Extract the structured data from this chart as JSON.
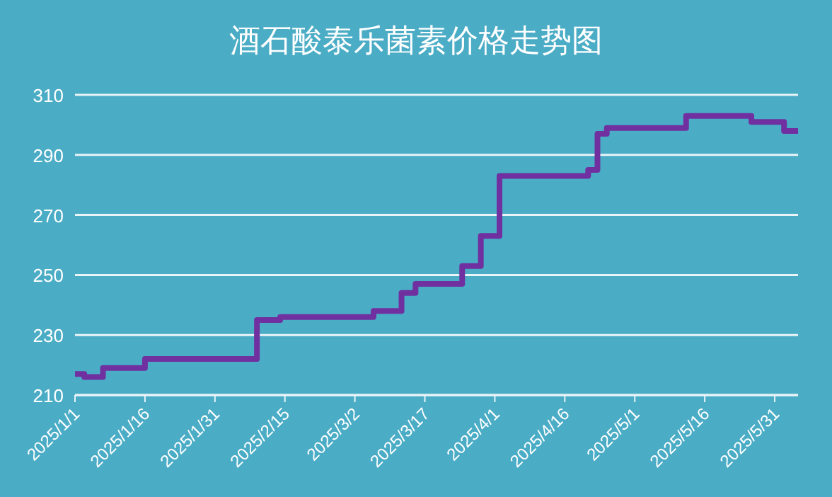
{
  "chart_data": {
    "type": "step",
    "title": "酒石酸泰乐菌素价格走势图",
    "x": [
      "2025-01-01",
      "2025-01-03",
      "2025-01-07",
      "2025-01-16",
      "2025-02-09",
      "2025-02-14",
      "2025-03-06",
      "2025-03-12",
      "2025-03-15",
      "2025-03-25",
      "2025-03-29",
      "2025-04-02",
      "2025-04-21",
      "2025-04-23",
      "2025-04-25",
      "2025-05-12",
      "2025-05-26",
      "2025-06-02",
      "2025-06-05"
    ],
    "series": [
      {
        "color": "#7030a0",
        "values": [
          217,
          216,
          219,
          222,
          235,
          236,
          238,
          244,
          247,
          253,
          263,
          283,
          285,
          297,
          299,
          303,
          301,
          298,
          298
        ]
      }
    ],
    "xlim": [
      "2025-01-01",
      "2025-06-05"
    ],
    "xticks": [
      {
        "value": "2025-01-01",
        "label": "2025/1/1"
      },
      {
        "value": "2025-01-16",
        "label": "2025/1/16"
      },
      {
        "value": "2025-01-31",
        "label": "2025/1/31"
      },
      {
        "value": "2025-02-15",
        "label": "2025/2/15"
      },
      {
        "value": "2025-03-02",
        "label": "2025/3/2"
      },
      {
        "value": "2025-03-17",
        "label": "2025/3/17"
      },
      {
        "value": "2025-04-01",
        "label": "2025/4/1"
      },
      {
        "value": "2025-04-16",
        "label": "2025/4/16"
      },
      {
        "value": "2025-05-01",
        "label": "2025/5/1"
      },
      {
        "value": "2025-05-16",
        "label": "2025/5/16"
      },
      {
        "value": "2025-05-31",
        "label": "2025/5/31"
      }
    ],
    "ylim": [
      210,
      310
    ],
    "yticks": [
      210,
      230,
      250,
      270,
      290,
      310
    ],
    "grid": "y",
    "marker": "none",
    "line_style": "solid"
  }
}
